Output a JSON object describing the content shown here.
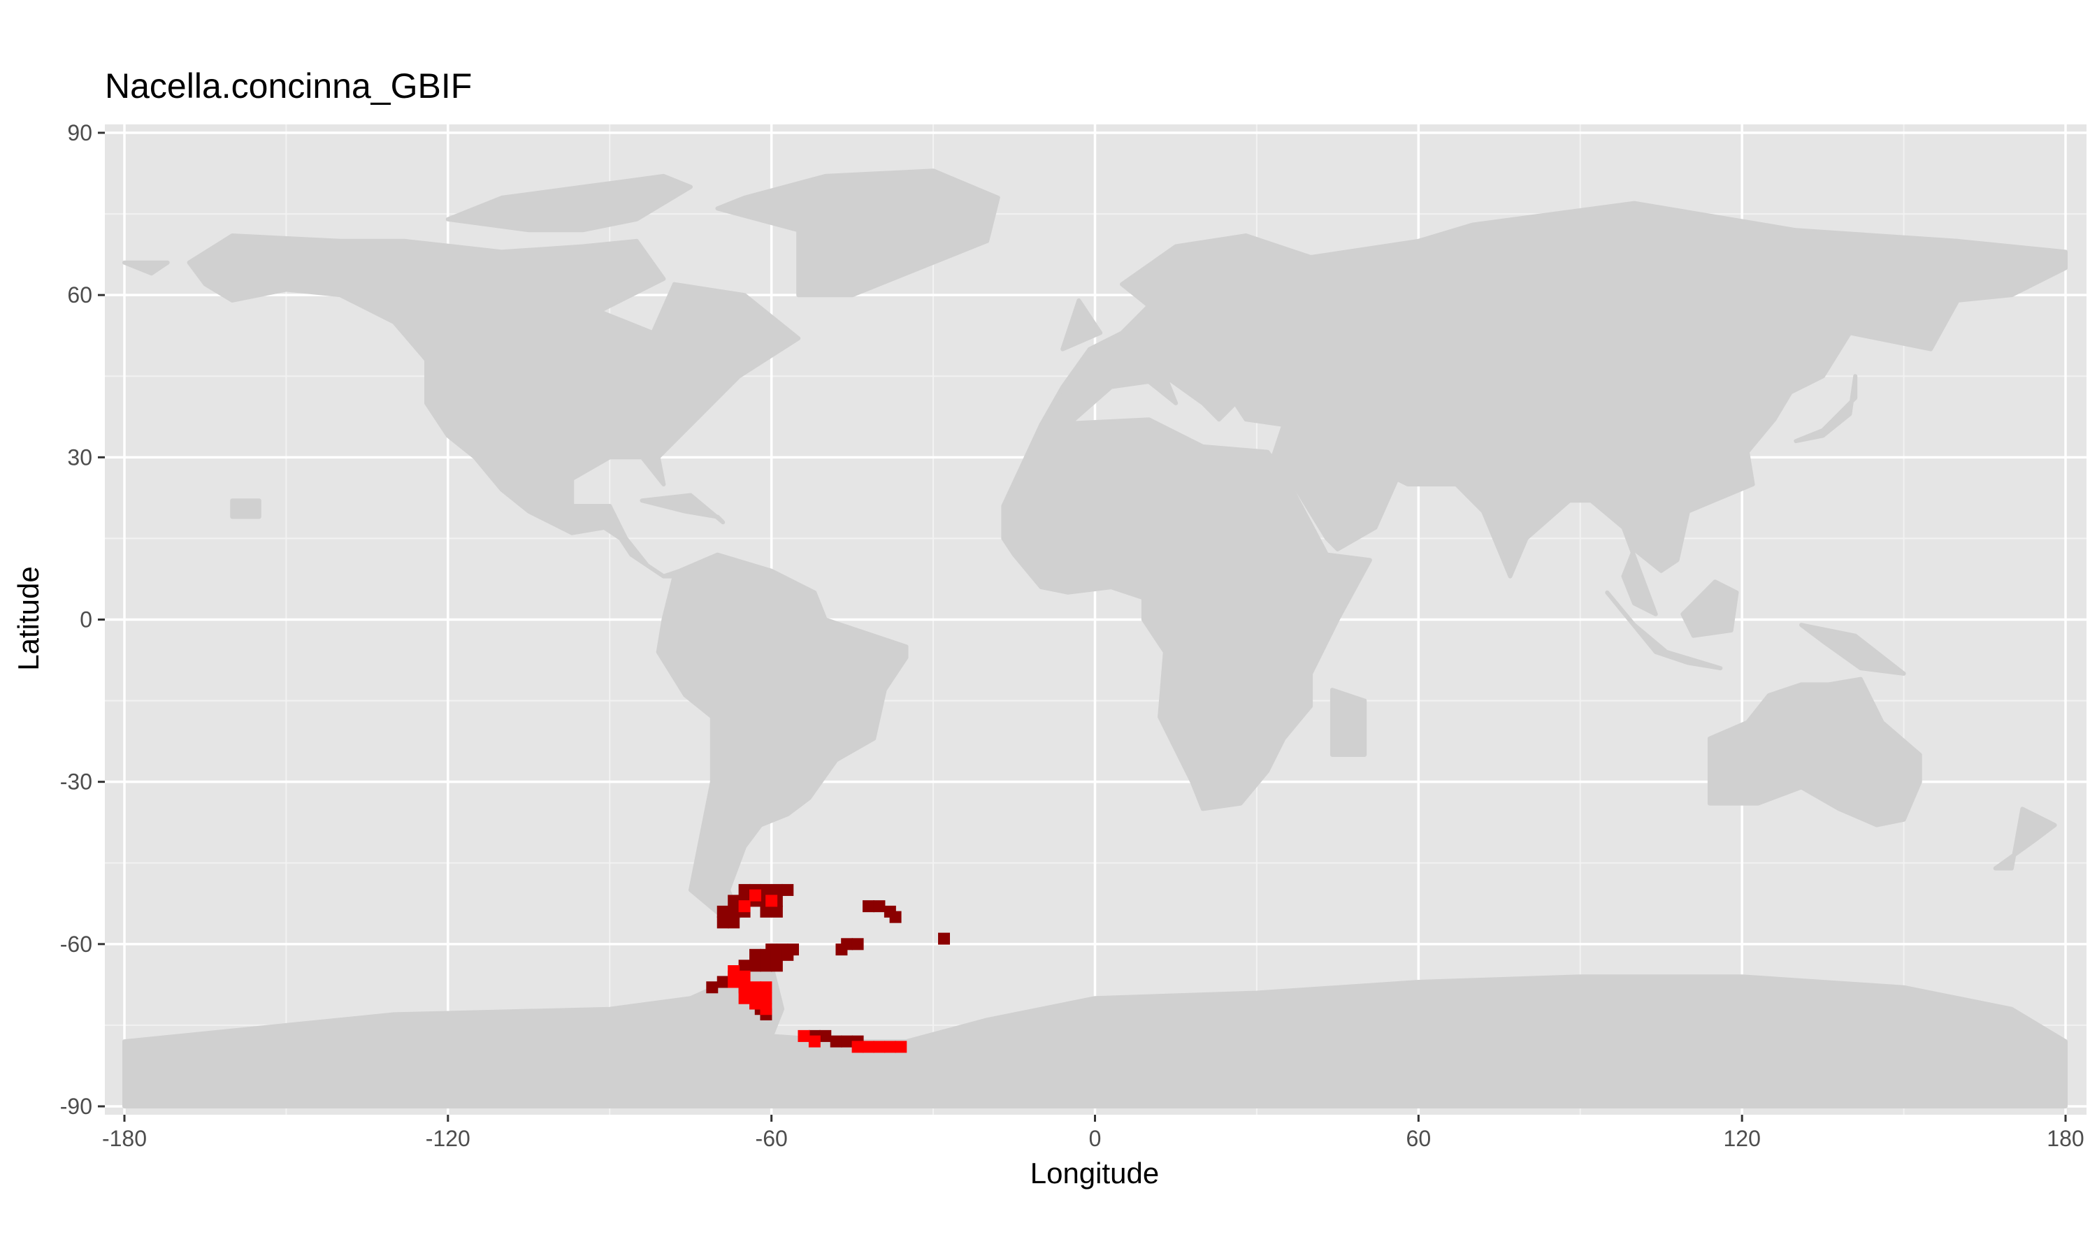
{
  "chart_data": {
    "type": "map",
    "title": "Nacella.concinna_GBIF",
    "xlabel": "Longitude",
    "ylabel": "Latitude",
    "xlim": [
      -180,
      180
    ],
    "ylim": [
      -90,
      90
    ],
    "x_ticks": [
      -180,
      -120,
      -60,
      0,
      60,
      120,
      180
    ],
    "y_ticks": [
      -90,
      -60,
      -30,
      0,
      30,
      60,
      90
    ],
    "x_tick_labels": [
      "-180",
      "-120",
      "-60",
      "0",
      "60",
      "120",
      "180"
    ],
    "y_tick_labels": [
      "-90",
      "-60",
      "-30",
      "0",
      "30",
      "60",
      "90"
    ],
    "grid": true,
    "background_color": "#e5e5e5",
    "land_color": "#d0d0d0",
    "legend": "none",
    "occupied_cells_dark": [
      [
        -65,
        -50
      ],
      [
        -63,
        -50
      ],
      [
        -61,
        -50
      ],
      [
        -59,
        -50
      ],
      [
        -57,
        -50
      ],
      [
        -67,
        -52
      ],
      [
        -65,
        -52
      ],
      [
        -63,
        -52
      ],
      [
        -61,
        -52
      ],
      [
        -59,
        -52
      ],
      [
        -69,
        -54
      ],
      [
        -67,
        -54
      ],
      [
        -65,
        -54
      ],
      [
        -61,
        -54
      ],
      [
        -59,
        -54
      ],
      [
        -69,
        -56
      ],
      [
        -67,
        -56
      ],
      [
        -42,
        -53
      ],
      [
        -40,
        -53
      ],
      [
        -38,
        -54
      ],
      [
        -37,
        -55
      ],
      [
        -28,
        -59
      ],
      [
        -46,
        -60
      ],
      [
        -44,
        -60
      ],
      [
        -47,
        -61
      ],
      [
        -60,
        -61
      ],
      [
        -58,
        -61
      ],
      [
        -56,
        -61
      ],
      [
        -63,
        -62
      ],
      [
        -61,
        -62
      ],
      [
        -59,
        -62
      ],
      [
        -57,
        -62
      ],
      [
        -65,
        -64
      ],
      [
        -63,
        -64
      ],
      [
        -61,
        -64
      ],
      [
        -59,
        -64
      ],
      [
        -67,
        -66
      ],
      [
        -69,
        -67
      ],
      [
        -71,
        -68
      ],
      [
        -65,
        -68
      ],
      [
        -62,
        -70
      ],
      [
        -62,
        -72
      ],
      [
        -61,
        -73
      ],
      [
        -52,
        -77
      ],
      [
        -50,
        -77
      ],
      [
        -48,
        -78
      ],
      [
        -46,
        -78
      ],
      [
        -44,
        -78
      ]
    ],
    "occupied_cells_red": [
      [
        -63,
        -51
      ],
      [
        -60,
        -52
      ],
      [
        -65,
        -53
      ],
      [
        -67,
        -65
      ],
      [
        -65,
        -66
      ],
      [
        -67,
        -67
      ],
      [
        -65,
        -68
      ],
      [
        -63,
        -68
      ],
      [
        -61,
        -68
      ],
      [
        -65,
        -70
      ],
      [
        -63,
        -70
      ],
      [
        -61,
        -70
      ],
      [
        -63,
        -71
      ],
      [
        -61,
        -72
      ],
      [
        -54,
        -77
      ],
      [
        -52,
        -78
      ],
      [
        -44,
        -79
      ],
      [
        -42,
        -79
      ],
      [
        -40,
        -79
      ],
      [
        -38,
        -79
      ],
      [
        -36,
        -79
      ]
    ],
    "land_polygons": [
      [
        [
          -168,
          66
        ],
        [
          -160,
          71
        ],
        [
          -140,
          70
        ],
        [
          -128,
          70
        ],
        [
          -110,
          68
        ],
        [
          -95,
          69
        ],
        [
          -85,
          70
        ],
        [
          -80,
          63
        ],
        [
          -92,
          57
        ],
        [
          -82,
          53
        ],
        [
          -78,
          62
        ],
        [
          -65,
          60
        ],
        [
          -55,
          52
        ],
        [
          -66,
          45
        ],
        [
          -70,
          41
        ],
        [
          -76,
          35
        ],
        [
          -81,
          30
        ],
        [
          -80,
          25
        ],
        [
          -84,
          30
        ],
        [
          -90,
          30
        ],
        [
          -97,
          26
        ],
        [
          -97,
          21
        ],
        [
          -90,
          21
        ],
        [
          -87,
          15
        ],
        [
          -83,
          10
        ],
        [
          -80,
          8
        ],
        [
          -78,
          8
        ],
        [
          -80,
          0
        ],
        [
          -81,
          -6
        ],
        [
          -76,
          -14
        ],
        [
          -71,
          -18
        ],
        [
          -71,
          -30
        ],
        [
          -73,
          -40
        ],
        [
          -75,
          -50
        ],
        [
          -69,
          -55
        ],
        [
          -66,
          -55
        ],
        [
          -68,
          -50
        ],
        [
          -65,
          -42
        ],
        [
          -62,
          -38
        ],
        [
          -57,
          -36
        ],
        [
          -53,
          -33
        ],
        [
          -48,
          -26
        ],
        [
          -41,
          -22
        ],
        [
          -39,
          -13
        ],
        [
          -35,
          -7
        ],
        [
          -35,
          -5
        ],
        [
          -44,
          -2
        ],
        [
          -50,
          0
        ],
        [
          -52,
          5
        ],
        [
          -60,
          9
        ],
        [
          -70,
          12
        ],
        [
          -77,
          9
        ],
        [
          -80,
          8
        ],
        [
          -86,
          12
        ],
        [
          -88,
          15
        ],
        [
          -91,
          17
        ],
        [
          -97,
          16
        ],
        [
          -105,
          20
        ],
        [
          -110,
          24
        ],
        [
          -115,
          30
        ],
        [
          -120,
          34
        ],
        [
          -124,
          40
        ],
        [
          -124,
          48
        ],
        [
          -130,
          55
        ],
        [
          -140,
          60
        ],
        [
          -150,
          61
        ],
        [
          -160,
          59
        ],
        [
          -165,
          62
        ]
      ],
      [
        [
          -55,
          60
        ],
        [
          -45,
          60
        ],
        [
          -20,
          70
        ],
        [
          -18,
          78
        ],
        [
          -30,
          83
        ],
        [
          -50,
          82
        ],
        [
          -65,
          78
        ],
        [
          -70,
          76
        ],
        [
          -55,
          72
        ]
      ],
      [
        [
          -95,
          72
        ],
        [
          -85,
          74
        ],
        [
          -75,
          80
        ],
        [
          -80,
          82
        ],
        [
          -95,
          80
        ],
        [
          -110,
          78
        ],
        [
          -120,
          74
        ],
        [
          -105,
          72
        ]
      ],
      [
        [
          -10,
          36
        ],
        [
          -6,
          43
        ],
        [
          -1,
          50
        ],
        [
          5,
          53
        ],
        [
          10,
          58
        ],
        [
          5,
          62
        ],
        [
          15,
          69
        ],
        [
          28,
          71
        ],
        [
          40,
          67
        ],
        [
          60,
          70
        ],
        [
          70,
          73
        ],
        [
          100,
          77
        ],
        [
          130,
          72
        ],
        [
          160,
          70
        ],
        [
          180,
          68
        ],
        [
          180,
          65
        ],
        [
          170,
          60
        ],
        [
          160,
          59
        ],
        [
          155,
          50
        ],
        [
          140,
          53
        ],
        [
          135,
          45
        ],
        [
          129,
          42
        ],
        [
          126,
          37
        ],
        [
          121,
          31
        ],
        [
          122,
          25
        ],
        [
          110,
          20
        ],
        [
          108,
          11
        ],
        [
          105,
          9
        ],
        [
          100,
          13
        ],
        [
          98,
          8
        ],
        [
          100,
          3
        ],
        [
          104,
          1
        ],
        [
          98,
          17
        ],
        [
          92,
          22
        ],
        [
          88,
          22
        ],
        [
          80,
          15
        ],
        [
          77,
          8
        ],
        [
          72,
          20
        ],
        [
          67,
          25
        ],
        [
          58,
          25
        ],
        [
          56,
          26
        ],
        [
          52,
          17
        ],
        [
          45,
          13
        ],
        [
          43,
          15
        ],
        [
          35,
          28
        ],
        [
          33,
          30
        ],
        [
          35,
          36
        ],
        [
          28,
          37
        ],
        [
          26,
          40
        ],
        [
          23,
          37
        ],
        [
          20,
          40
        ],
        [
          13,
          45
        ],
        [
          15,
          40
        ],
        [
          10,
          44
        ],
        [
          3,
          43
        ],
        [
          -5,
          36
        ]
      ],
      [
        [
          -17,
          21
        ],
        [
          -10,
          36
        ],
        [
          10,
          37
        ],
        [
          20,
          32
        ],
        [
          32,
          31
        ],
        [
          35,
          27
        ],
        [
          43,
          12
        ],
        [
          51,
          11
        ],
        [
          45,
          0
        ],
        [
          40,
          -10
        ],
        [
          40,
          -16
        ],
        [
          35,
          -22
        ],
        [
          32,
          -28
        ],
        [
          27,
          -34
        ],
        [
          20,
          -35
        ],
        [
          18,
          -30
        ],
        [
          12,
          -18
        ],
        [
          13,
          -6
        ],
        [
          9,
          0
        ],
        [
          9,
          4
        ],
        [
          3,
          6
        ],
        [
          -5,
          5
        ],
        [
          -10,
          6
        ],
        [
          -15,
          12
        ],
        [
          -17,
          15
        ]
      ],
      [
        [
          44,
          -13
        ],
        [
          50,
          -15
        ],
        [
          50,
          -25
        ],
        [
          44,
          -25
        ]
      ],
      [
        [
          114,
          -22
        ],
        [
          114,
          -34
        ],
        [
          123,
          -34
        ],
        [
          131,
          -31
        ],
        [
          138,
          -35
        ],
        [
          145,
          -38
        ],
        [
          150,
          -37
        ],
        [
          153,
          -30
        ],
        [
          153,
          -25
        ],
        [
          146,
          -19
        ],
        [
          142,
          -11
        ],
        [
          136,
          -12
        ],
        [
          131,
          -12
        ],
        [
          125,
          -14
        ],
        [
          121,
          -19
        ]
      ],
      [
        [
          95,
          5
        ],
        [
          104,
          -6
        ],
        [
          110,
          -8
        ],
        [
          116,
          -9
        ],
        [
          106,
          -6
        ],
        [
          100,
          -1
        ]
      ],
      [
        [
          109,
          1
        ],
        [
          115,
          7
        ],
        [
          119,
          5
        ],
        [
          118,
          -2
        ],
        [
          111,
          -3
        ]
      ],
      [
        [
          131,
          -1
        ],
        [
          141,
          -3
        ],
        [
          150,
          -10
        ],
        [
          142,
          -9
        ],
        [
          135,
          -4
        ]
      ],
      [
        [
          172,
          -35
        ],
        [
          178,
          -38
        ],
        [
          174,
          -41
        ],
        [
          167,
          -46
        ],
        [
          170,
          -46
        ]
      ],
      [
        [
          -180,
          -78
        ],
        [
          -150,
          -75
        ],
        [
          -130,
          -73
        ],
        [
          -90,
          -72
        ],
        [
          -75,
          -70
        ],
        [
          -66,
          -66
        ],
        [
          -60,
          -64
        ],
        [
          -58,
          -72
        ],
        [
          -60,
          -77
        ],
        [
          -45,
          -78
        ],
        [
          -35,
          -78
        ],
        [
          -20,
          -74
        ],
        [
          0,
          -70
        ],
        [
          30,
          -69
        ],
        [
          60,
          -67
        ],
        [
          90,
          -66
        ],
        [
          120,
          -66
        ],
        [
          150,
          -68
        ],
        [
          170,
          -72
        ],
        [
          180,
          -78
        ],
        [
          180,
          -90
        ],
        [
          -180,
          -90
        ]
      ],
      [
        [
          -6,
          50
        ],
        [
          -3,
          59
        ],
        [
          1,
          53
        ]
      ],
      [
        [
          130,
          33
        ],
        [
          135,
          35
        ],
        [
          141,
          41
        ],
        [
          141,
          45
        ],
        [
          140,
          38
        ],
        [
          135,
          34
        ]
      ],
      [
        [
          -160,
          19
        ],
        [
          -155,
          19
        ],
        [
          -155,
          22
        ],
        [
          -160,
          22
        ]
      ],
      [
        [
          -84,
          22
        ],
        [
          -76,
          20
        ],
        [
          -70,
          19
        ],
        [
          -69,
          18
        ],
        [
          -75,
          23
        ]
      ],
      [
        [
          -180,
          66
        ],
        [
          -175,
          64
        ],
        [
          -172,
          66
        ]
      ]
    ]
  }
}
